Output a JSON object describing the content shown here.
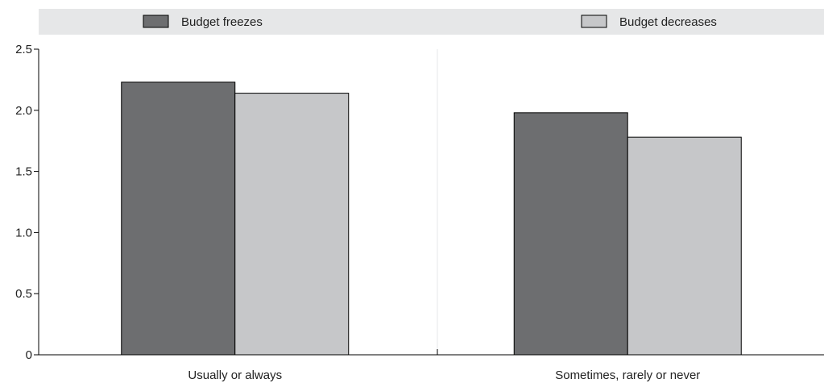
{
  "chart_data": {
    "type": "bar",
    "categories": [
      "Usually or always",
      "Sometimes, rarely or never"
    ],
    "series": [
      {
        "name": "Budget freezes",
        "values": [
          2.23,
          1.98
        ],
        "color": "#6d6e70"
      },
      {
        "name": "Budget decreases",
        "values": [
          2.14,
          1.78
        ],
        "color": "#c6c7c9"
      }
    ],
    "ylim": [
      0,
      2.5
    ],
    "yticks": [
      0,
      0.5,
      1.0,
      1.5,
      2.0,
      2.5
    ],
    "ytick_labels": [
      "0",
      "0.5",
      "1.0",
      "1.5",
      "2.0",
      "2.5"
    ],
    "legend_position": "top",
    "grid": false,
    "colors": {
      "legend_band": "#e6e7e8",
      "axis": "#000000",
      "divider": "#e6e7e8"
    }
  }
}
